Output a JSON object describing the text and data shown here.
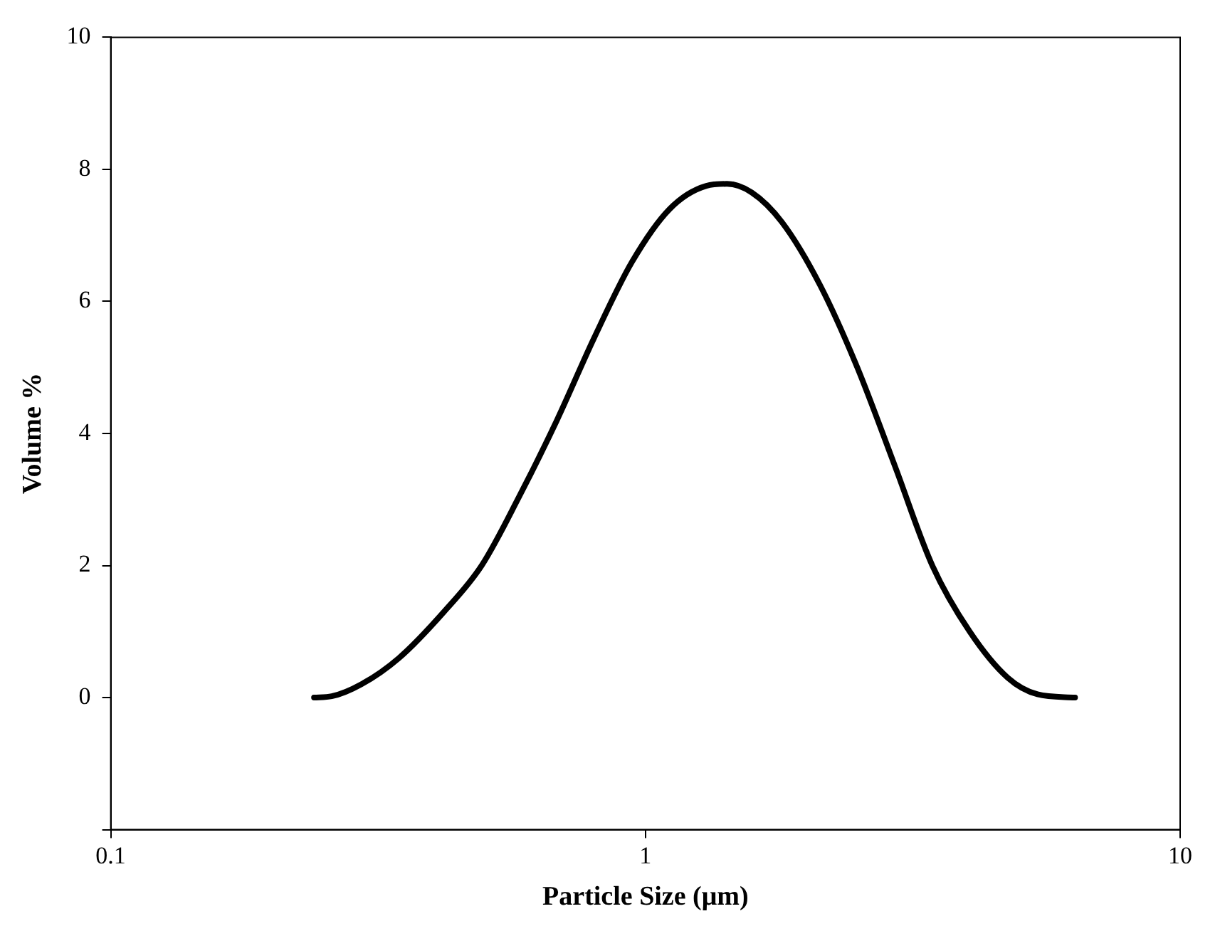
{
  "chart_data": {
    "type": "line",
    "xlabel": "Particle Size (μm)",
    "ylabel": "Volume %",
    "x": [
      0.24,
      0.259,
      0.294,
      0.346,
      0.42,
      0.494,
      0.581,
      0.683,
      0.802,
      0.944,
      1.11,
      1.3,
      1.42,
      1.58,
      1.8,
      2.12,
      2.49,
      2.93,
      3.44,
      4.04,
      4.76,
      5.41,
      6.36
    ],
    "series": [
      {
        "color": "#000000",
        "values": [
          0,
          0.02,
          0.2,
          0.6,
          1.3,
          2.0,
          3.05,
          4.2,
          5.45,
          6.6,
          7.4,
          7.75,
          7.78,
          7.65,
          7.2,
          6.25,
          5.0,
          3.5,
          2.0,
          1.0,
          0.3,
          0.05,
          0
        ]
      }
    ],
    "log": "x",
    "xlim": [
      0.1,
      10
    ],
    "xticks": [
      0.1,
      1,
      10
    ],
    "ylim": [
      -2,
      10
    ],
    "yticks": [
      {
        "value": -2,
        "label": null
      },
      0,
      2,
      4,
      6,
      8,
      10
    ],
    "grid": false,
    "legend": false,
    "marker": "none",
    "line_style": "solid"
  }
}
